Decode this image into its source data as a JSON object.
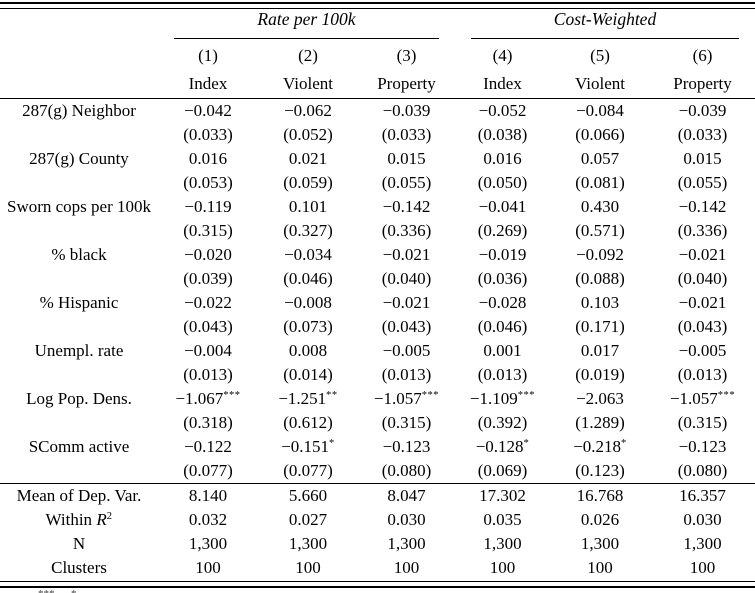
{
  "table": {
    "groups": [
      {
        "label": "Rate per 100k",
        "span": 3
      },
      {
        "label": "Cost-Weighted",
        "span": 3
      }
    ],
    "column_numbers": [
      "(1)",
      "(2)",
      "(3)",
      "(4)",
      "(5)",
      "(6)"
    ],
    "column_names": [
      "Index",
      "Violent",
      "Property",
      "Index",
      "Violent",
      "Property"
    ],
    "coef_rows": [
      {
        "label": "287(g) Neighbor",
        "estimates": [
          "−0.042",
          "−0.062",
          "−0.039",
          "−0.052",
          "−0.084",
          "−0.039"
        ],
        "std_errors": [
          "(0.033)",
          "(0.052)",
          "(0.033)",
          "(0.038)",
          "(0.066)",
          "(0.033)"
        ]
      },
      {
        "label": "287(g) County",
        "estimates": [
          "0.016",
          "0.021",
          "0.015",
          "0.016",
          "0.057",
          "0.015"
        ],
        "std_errors": [
          "(0.053)",
          "(0.059)",
          "(0.055)",
          "(0.050)",
          "(0.081)",
          "(0.055)"
        ]
      },
      {
        "label": "Sworn cops per 100k",
        "estimates": [
          "−0.119",
          "0.101",
          "−0.142",
          "−0.041",
          "0.430",
          "−0.142"
        ],
        "std_errors": [
          "(0.315)",
          "(0.327)",
          "(0.336)",
          "(0.269)",
          "(0.571)",
          "(0.336)"
        ]
      },
      {
        "label": "% black",
        "estimates": [
          "−0.020",
          "−0.034",
          "−0.021",
          "−0.019",
          "−0.092",
          "−0.021"
        ],
        "std_errors": [
          "(0.039)",
          "(0.046)",
          "(0.040)",
          "(0.036)",
          "(0.088)",
          "(0.040)"
        ]
      },
      {
        "label": "% Hispanic",
        "estimates": [
          "−0.022",
          "−0.008",
          "−0.021",
          "−0.028",
          "0.103",
          "−0.021"
        ],
        "std_errors": [
          "(0.043)",
          "(0.073)",
          "(0.043)",
          "(0.046)",
          "(0.171)",
          "(0.043)"
        ]
      },
      {
        "label": "Unempl. rate",
        "estimates": [
          "−0.004",
          "0.008",
          "−0.005",
          "0.001",
          "0.017",
          "−0.005"
        ],
        "std_errors": [
          "(0.013)",
          "(0.014)",
          "(0.013)",
          "(0.013)",
          "(0.019)",
          "(0.013)"
        ]
      },
      {
        "label": "Log Pop. Dens.",
        "estimates": [
          "−1.067***",
          "−1.251**",
          "−1.057***",
          "−1.109***",
          "−2.063",
          "−1.057***"
        ],
        "std_errors": [
          "(0.318)",
          "(0.612)",
          "(0.315)",
          "(0.392)",
          "(1.289)",
          "(0.315)"
        ]
      },
      {
        "label": "SComm active",
        "estimates": [
          "−0.122",
          "−0.151*",
          "−0.123",
          "−0.128*",
          "−0.218*",
          "−0.123"
        ],
        "std_errors": [
          "(0.077)",
          "(0.077)",
          "(0.080)",
          "(0.069)",
          "(0.123)",
          "(0.080)"
        ]
      }
    ],
    "summary_rows": [
      {
        "label": "Mean of Dep. Var.",
        "values": [
          "8.140",
          "5.660",
          "8.047",
          "17.302",
          "16.768",
          "16.357"
        ]
      },
      {
        "label": "Within ",
        "label_italic": "R",
        "label_sup": "2",
        "values": [
          "0.032",
          "0.027",
          "0.030",
          "0.035",
          "0.026",
          "0.030"
        ]
      },
      {
        "label": "N",
        "values": [
          "1,300",
          "1,300",
          "1,300",
          "1,300",
          "1,300",
          "1,300"
        ]
      },
      {
        "label": "Clusters",
        "values": [
          "100",
          "100",
          "100",
          "100",
          "100",
          "100"
        ]
      }
    ]
  },
  "footnote_fragment": "***      *"
}
